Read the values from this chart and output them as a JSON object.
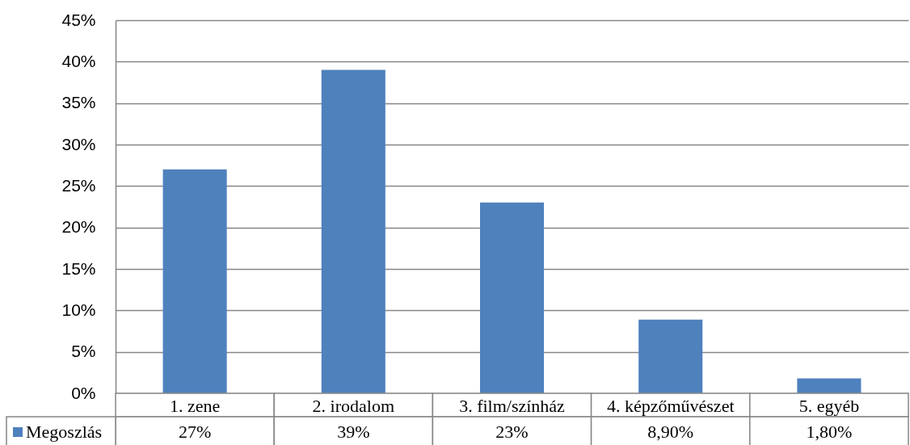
{
  "chart_data": {
    "type": "bar",
    "categories": [
      "1. zene",
      "2. irodalom",
      "3. film/színház",
      "4. képzőművészet",
      "5. egyéb"
    ],
    "series": [
      {
        "name": "Megoszlás",
        "color": "#4f81bd",
        "values": [
          27,
          39,
          23,
          8.9,
          1.8
        ],
        "value_labels": [
          "27%",
          "39%",
          "23%",
          "8,90%",
          "1,80%"
        ]
      }
    ],
    "ylim": [
      0,
      45
    ],
    "yticks": [
      {
        "value": 0,
        "label": "0%"
      },
      {
        "value": 5,
        "label": "5%"
      },
      {
        "value": 10,
        "label": "10%"
      },
      {
        "value": 15,
        "label": "15%"
      },
      {
        "value": 20,
        "label": "20%"
      },
      {
        "value": 25,
        "label": "25%"
      },
      {
        "value": 30,
        "label": "30%"
      },
      {
        "value": 35,
        "label": "35%"
      },
      {
        "value": 40,
        "label": "40%"
      },
      {
        "value": 45,
        "label": "45%"
      }
    ],
    "grid": "y",
    "legend": "bottom left"
  }
}
